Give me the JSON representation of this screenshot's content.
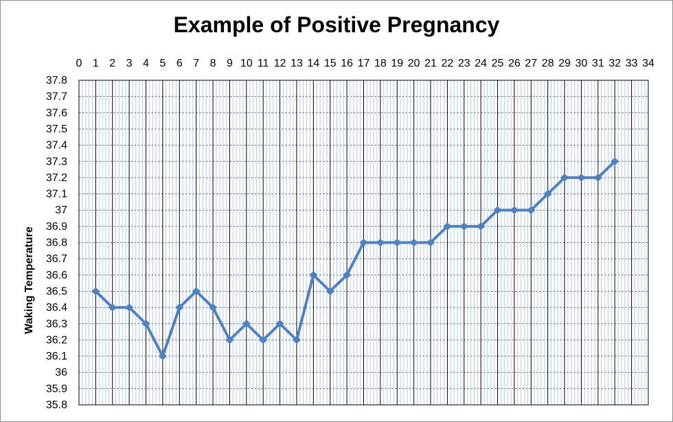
{
  "chart_data": {
    "type": "line",
    "title": "Example of Positive Pregnancy",
    "xlabel": "",
    "ylabel": "Waking Temperature",
    "x_axis_position": "top",
    "xlim": [
      0,
      34
    ],
    "ylim": [
      35.8,
      37.8
    ],
    "x_ticks": [
      0,
      1,
      2,
      3,
      4,
      5,
      6,
      7,
      8,
      9,
      10,
      11,
      12,
      13,
      14,
      15,
      16,
      17,
      18,
      19,
      20,
      21,
      22,
      23,
      24,
      25,
      26,
      27,
      28,
      29,
      30,
      31,
      32,
      33,
      34
    ],
    "y_ticks": [
      "37.8",
      "37.7",
      "37.6",
      "37.5",
      "37.4",
      "37.3",
      "37.2",
      "37.1",
      "37",
      "36.9",
      "36.8",
      "36.7",
      "36.6",
      "36.5",
      "36.4",
      "36.3",
      "36.2",
      "36.1",
      "36",
      "35.9",
      "35.8"
    ],
    "grid": true,
    "legend": "none",
    "series": [
      {
        "x": [
          1,
          2,
          3,
          4,
          5,
          6,
          7,
          8,
          9,
          10,
          11,
          12,
          13,
          14,
          15,
          16,
          17,
          18,
          19,
          20,
          21,
          22,
          23,
          24,
          25,
          26,
          27,
          28,
          29,
          30,
          31,
          32
        ],
        "values": [
          36.5,
          36.4,
          36.4,
          36.3,
          36.1,
          36.4,
          36.5,
          36.4,
          36.2,
          36.3,
          36.2,
          36.3,
          36.2,
          36.6,
          36.5,
          36.6,
          36.8,
          36.8,
          36.8,
          36.8,
          36.8,
          36.9,
          36.9,
          36.9,
          37.0,
          37.0,
          37.0,
          37.1,
          37.2,
          37.2,
          37.2,
          37.3
        ],
        "color": "#4f81bd",
        "marker": "diamond"
      }
    ],
    "colors": {
      "line": "#4f81bd",
      "major_grid": "#000000",
      "minor_grid": "#b7cbe8",
      "horizontal_grid": "#7f7f7f"
    }
  }
}
